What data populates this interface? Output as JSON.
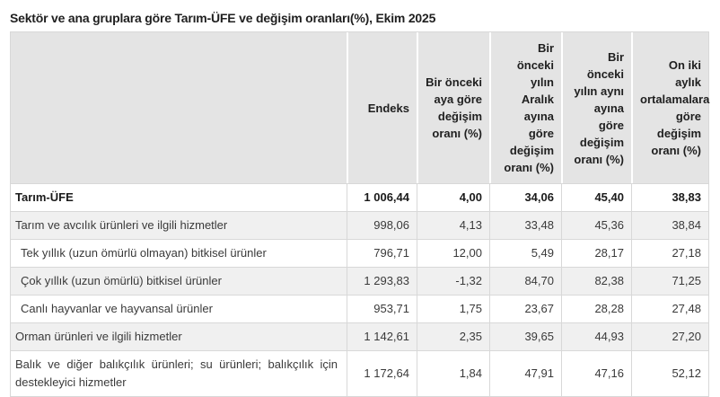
{
  "title": "Sektör ve ana gruplara göre Tarım-ÜFE ve değişim oranları(%), Ekim 2025",
  "table": {
    "columns": [
      {
        "label": ""
      },
      {
        "label": "Endeks"
      },
      {
        "label": "Bir önceki aya göre değişim oranı (%)"
      },
      {
        "label": "Bir önceki yılın Aralık ayına göre değişim oranı (%)"
      },
      {
        "label": "Bir önceki yılın aynı ayına göre değişim oranı (%)"
      },
      {
        "label": "On iki aylık ortalamalara göre değişim oranı (%)"
      }
    ],
    "rows": [
      {
        "label": "Tarım-ÜFE",
        "bold": true,
        "indent": false,
        "values": [
          "1 006,44",
          "4,00",
          "34,06",
          "45,40",
          "38,83"
        ]
      },
      {
        "label": "Tarım ve avcılık ürünleri ve ilgili hizmetler",
        "bold": false,
        "indent": false,
        "values": [
          "998,06",
          "4,13",
          "33,48",
          "45,36",
          "38,84"
        ]
      },
      {
        "label": "Tek yıllık (uzun ömürlü olmayan) bitkisel ürünler",
        "bold": false,
        "indent": true,
        "values": [
          "796,71",
          "12,00",
          "5,49",
          "28,17",
          "27,18"
        ]
      },
      {
        "label": "Çok yıllık (uzun ömürlü) bitkisel ürünler",
        "bold": false,
        "indent": true,
        "values": [
          "1 293,83",
          "-1,32",
          "84,70",
          "82,38",
          "71,25"
        ]
      },
      {
        "label": "Canlı hayvanlar ve hayvansal ürünler",
        "bold": false,
        "indent": true,
        "values": [
          "953,71",
          "1,75",
          "23,67",
          "28,28",
          "27,48"
        ]
      },
      {
        "label": "Orman ürünleri ve ilgili hizmetler",
        "bold": false,
        "indent": false,
        "values": [
          "1 142,61",
          "2,35",
          "39,65",
          "44,93",
          "27,20"
        ]
      },
      {
        "label": "Balık ve diğer balıkçılık ürünleri; su ürünleri; balıkçılık için destekleyici hizmetler",
        "bold": false,
        "indent": false,
        "values": [
          "1 172,64",
          "1,84",
          "47,91",
          "47,16",
          "52,12"
        ]
      }
    ]
  },
  "colors": {
    "header_bg": "#e4e4e4",
    "stripe_bg": "#f0f0f0",
    "border": "#d8d8d8",
    "text": "#3a3a3a",
    "title_text": "#1f1f1f"
  },
  "chart_data": {
    "type": "table",
    "title": "Sektör ve ana gruplara göre Tarım-ÜFE ve değişim oranları(%), Ekim 2025",
    "columns": [
      "Endeks",
      "Bir önceki aya göre değişim oranı (%)",
      "Bir önceki yılın Aralık ayına göre değişim oranı (%)",
      "Bir önceki yılın aynı ayına göre değişim oranı (%)",
      "On iki aylık ortalamalara göre değişim oranı (%)"
    ],
    "rows": [
      {
        "label": "Tarım-ÜFE",
        "values": [
          1006.44,
          4.0,
          34.06,
          45.4,
          38.83
        ]
      },
      {
        "label": "Tarım ve avcılık ürünleri ve ilgili hizmetler",
        "values": [
          998.06,
          4.13,
          33.48,
          45.36,
          38.84
        ]
      },
      {
        "label": "Tek yıllık (uzun ömürlü olmayan) bitkisel ürünler",
        "values": [
          796.71,
          12.0,
          5.49,
          28.17,
          27.18
        ]
      },
      {
        "label": "Çok yıllık (uzun ömürlü) bitkisel ürünler",
        "values": [
          1293.83,
          -1.32,
          84.7,
          82.38,
          71.25
        ]
      },
      {
        "label": "Canlı hayvanlar ve hayvansal ürünler",
        "values": [
          953.71,
          1.75,
          23.67,
          28.28,
          27.48
        ]
      },
      {
        "label": "Orman ürünleri ve ilgili hizmetler",
        "values": [
          1142.61,
          2.35,
          39.65,
          44.93,
          27.2
        ]
      },
      {
        "label": "Balık ve diğer balıkçılık ürünleri; su ürünleri; balıkçılık için destekleyici hizmetler",
        "values": [
          1172.64,
          1.84,
          47.91,
          47.16,
          52.12
        ]
      }
    ]
  }
}
